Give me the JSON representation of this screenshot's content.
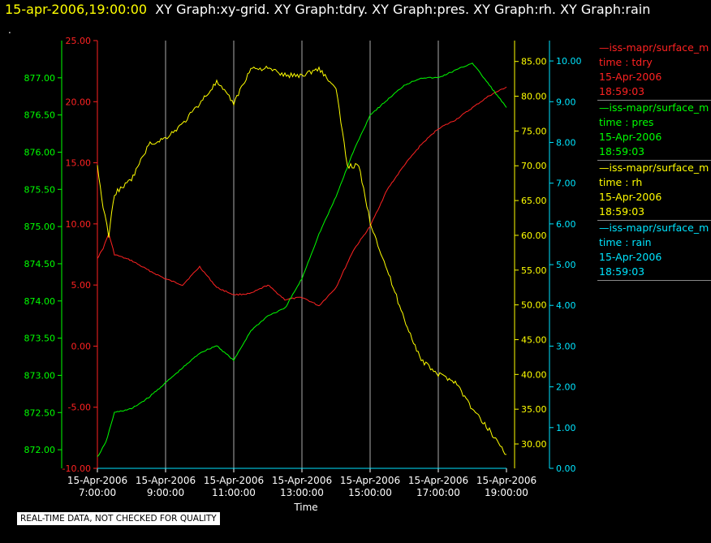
{
  "header": {
    "time": "15-apr-2006,19:00:00",
    "title": "XY Graph:xy-grid.  XY Graph:tdry.  XY Graph:pres.  XY Graph:rh.  XY Graph:rain"
  },
  "dot": ".",
  "disclaimer": "REAL-TIME DATA, NOT CHECKED FOR QUALITY",
  "legend": [
    {
      "line": "—iss-mapr/surface_m",
      "var": "time : tdry",
      "date": "15-Apr-2006",
      "time": "18:59:03",
      "color": "#ff2222"
    },
    {
      "line": "—iss-mapr/surface_m",
      "var": "time : pres",
      "date": "15-Apr-2006",
      "time": "18:59:03",
      "color": "#00ff00"
    },
    {
      "line": "—iss-mapr/surface_m",
      "var": "time : rh",
      "date": "15-Apr-2006",
      "time": "18:59:03",
      "color": "#ffff00"
    },
    {
      "line": "—iss-mapr/surface_m",
      "var": "time : rain",
      "date": "15-Apr-2006",
      "time": "18:59:03",
      "color": "#00e5ff"
    }
  ],
  "chart_data": {
    "type": "line",
    "xlabel": "Time",
    "x_ticks": [
      {
        "date": "15-Apr-2006",
        "time": "7:00:00"
      },
      {
        "date": "15-Apr-2006",
        "time": "9:00:00"
      },
      {
        "date": "15-Apr-2006",
        "time": "11:00:00"
      },
      {
        "date": "15-Apr-2006",
        "time": "13:00:00"
      },
      {
        "date": "15-Apr-2006",
        "time": "15:00:00"
      },
      {
        "date": "15-Apr-2006",
        "time": "17:00:00"
      },
      {
        "date": "15-Apr-2006",
        "time": "19:00:00"
      }
    ],
    "xlim": [
      "15-Apr-2006 7:00:00",
      "15-Apr-2006 19:00:00"
    ],
    "grid": "vertical",
    "axes": {
      "pres": {
        "color": "#00ff00",
        "ylim": [
          871.75,
          877.5
        ],
        "ticks": [
          "872.00",
          "872.50",
          "873.00",
          "873.50",
          "874.00",
          "874.50",
          "875.00",
          "875.50",
          "876.00",
          "876.50",
          "877.00"
        ]
      },
      "tdry": {
        "color": "#ff2222",
        "ylim": [
          -10,
          25
        ],
        "ticks": [
          "-10.00",
          "-5.00",
          "0.00",
          "5.00",
          "10.00",
          "15.00",
          "20.00",
          "25.00"
        ]
      },
      "rh": {
        "color": "#ffff00",
        "ylim": [
          26.5,
          88
        ],
        "ticks": [
          "30.00",
          "35.00",
          "40.00",
          "45.00",
          "50.00",
          "55.00",
          "60.00",
          "65.00",
          "70.00",
          "75.00",
          "80.00",
          "85.00"
        ]
      },
      "rain": {
        "color": "#00e5ff",
        "ylim": [
          0,
          10.5
        ],
        "ticks": [
          "0.00",
          "1.00",
          "2.00",
          "3.00",
          "4.00",
          "5.00",
          "6.00",
          "7.00",
          "8.00",
          "9.00",
          "10.00"
        ]
      }
    },
    "series": [
      {
        "key": "tdry",
        "color": "#ff2222",
        "x": [
          "15-Apr-2006 7:00",
          "15-Apr-2006 7:10",
          "15-Apr-2006 7:20",
          "15-Apr-2006 7:30",
          "15-Apr-2006 8:00",
          "15-Apr-2006 8:30",
          "15-Apr-2006 9:00",
          "15-Apr-2006 9:30",
          "15-Apr-2006 10:00",
          "15-Apr-2006 10:30",
          "15-Apr-2006 11:00",
          "15-Apr-2006 11:30",
          "15-Apr-2006 12:00",
          "15-Apr-2006 12:30",
          "15-Apr-2006 13:00",
          "15-Apr-2006 13:30",
          "15-Apr-2006 14:00",
          "15-Apr-2006 14:30",
          "15-Apr-2006 15:00",
          "15-Apr-2006 15:30",
          "15-Apr-2006 16:00",
          "15-Apr-2006 16:30",
          "15-Apr-2006 17:00",
          "15-Apr-2006 17:30",
          "15-Apr-2006 18:00",
          "15-Apr-2006 18:30",
          "15-Apr-2006 19:00"
        ],
        "y": [
          7.2,
          8.0,
          9.2,
          7.5,
          7.0,
          6.2,
          5.5,
          5.0,
          6.5,
          4.8,
          4.2,
          4.3,
          5.0,
          3.8,
          4.0,
          3.3,
          4.8,
          7.8,
          9.8,
          12.8,
          14.8,
          16.5,
          17.8,
          18.5,
          19.5,
          20.5,
          21.2
        ]
      },
      {
        "key": "pres",
        "color": "#00ff00",
        "x": [
          "15-Apr-2006 7:00",
          "15-Apr-2006 7:15",
          "15-Apr-2006 7:30",
          "15-Apr-2006 8:00",
          "15-Apr-2006 8:30",
          "15-Apr-2006 9:00",
          "15-Apr-2006 9:30",
          "15-Apr-2006 10:00",
          "15-Apr-2006 10:30",
          "15-Apr-2006 11:00",
          "15-Apr-2006 11:30",
          "15-Apr-2006 12:00",
          "15-Apr-2006 12:30",
          "15-Apr-2006 13:00",
          "15-Apr-2006 13:30",
          "15-Apr-2006 14:00",
          "15-Apr-2006 14:30",
          "15-Apr-2006 15:00",
          "15-Apr-2006 15:30",
          "15-Apr-2006 16:00",
          "15-Apr-2006 16:30",
          "15-Apr-2006 17:00",
          "15-Apr-2006 17:30",
          "15-Apr-2006 18:00",
          "15-Apr-2006 18:30",
          "15-Apr-2006 19:00"
        ],
        "y": [
          871.9,
          872.1,
          872.5,
          872.55,
          872.7,
          872.9,
          873.1,
          873.3,
          873.4,
          873.2,
          873.6,
          873.8,
          873.9,
          874.3,
          874.9,
          875.4,
          876.0,
          876.5,
          876.7,
          876.9,
          877.0,
          877.0,
          877.1,
          877.2,
          876.9,
          876.6
        ]
      },
      {
        "key": "rh",
        "color": "#ffff00",
        "x": [
          "15-Apr-2006 7:00",
          "15-Apr-2006 7:10",
          "15-Apr-2006 7:20",
          "15-Apr-2006 7:30",
          "15-Apr-2006 8:00",
          "15-Apr-2006 8:30",
          "15-Apr-2006 9:00",
          "15-Apr-2006 9:30",
          "15-Apr-2006 10:00",
          "15-Apr-2006 10:30",
          "15-Apr-2006 11:00",
          "15-Apr-2006 11:30",
          "15-Apr-2006 12:00",
          "15-Apr-2006 12:30",
          "15-Apr-2006 13:00",
          "15-Apr-2006 13:30",
          "15-Apr-2006 14:00",
          "15-Apr-2006 14:20",
          "15-Apr-2006 14:40",
          "15-Apr-2006 15:00",
          "15-Apr-2006 15:30",
          "15-Apr-2006 16:00",
          "15-Apr-2006 16:30",
          "15-Apr-2006 17:00",
          "15-Apr-2006 17:30",
          "15-Apr-2006 18:00",
          "15-Apr-2006 18:30",
          "15-Apr-2006 19:00"
        ],
        "y": [
          70,
          64,
          60,
          66,
          68,
          73,
          74,
          76,
          79,
          82,
          79,
          84,
          84,
          83,
          83,
          84,
          81,
          70,
          70,
          62,
          55,
          48,
          42,
          40,
          39,
          35,
          32,
          28.5
        ]
      },
      {
        "key": "rain",
        "color": "#00e5ff",
        "x": [
          "15-Apr-2006 7:00",
          "15-Apr-2006 19:00"
        ],
        "y": [
          0,
          0
        ]
      }
    ]
  }
}
